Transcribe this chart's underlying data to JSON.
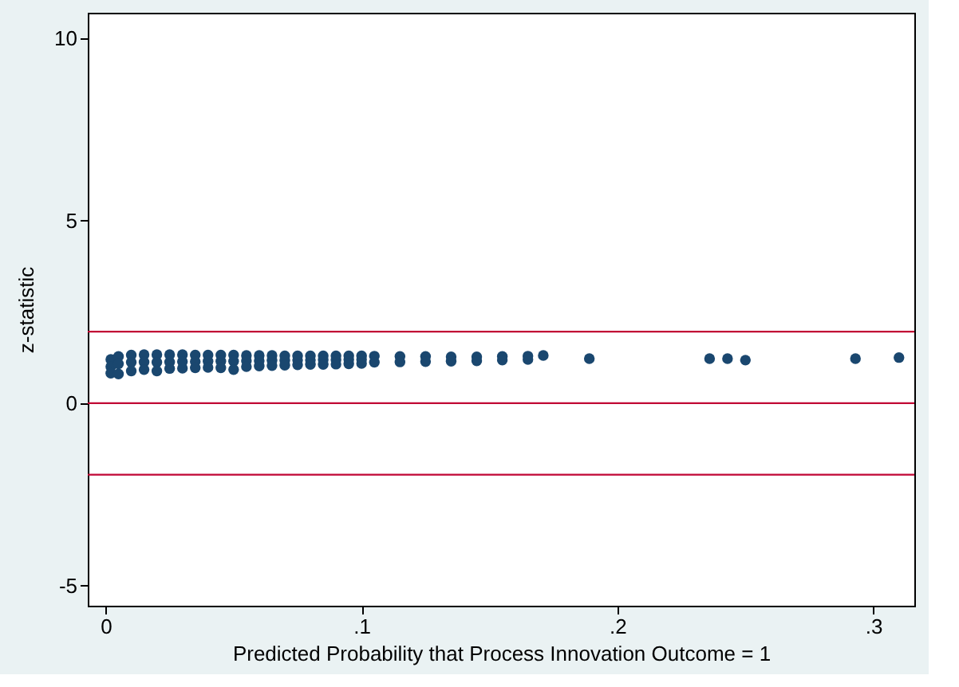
{
  "chart_data": {
    "type": "scatter",
    "xlabel": "Predicted Probability that Process Innovation Outcome = 1",
    "ylabel": "z-statistic",
    "x": [
      0.002,
      0.005,
      0.01,
      0.015,
      0.02,
      0.025,
      0.03,
      0.035,
      0.04,
      0.045,
      0.05,
      0.055,
      0.06,
      0.065,
      0.07,
      0.075,
      0.08,
      0.085,
      0.09,
      0.095,
      0.1,
      0.002,
      0.005,
      0.01,
      0.015,
      0.02,
      0.025,
      0.03,
      0.035,
      0.04,
      0.045,
      0.05,
      0.055,
      0.06,
      0.065,
      0.07,
      0.075,
      0.08,
      0.085,
      0.09,
      0.095,
      0.1,
      0.002,
      0.005,
      0.01,
      0.015,
      0.02,
      0.025,
      0.03,
      0.035,
      0.04,
      0.045,
      0.05,
      0.055,
      0.06,
      0.065,
      0.07,
      0.075,
      0.08,
      0.085,
      0.09,
      0.095,
      0.1,
      0.105,
      0.115,
      0.125,
      0.135,
      0.145,
      0.155,
      0.165,
      0.105,
      0.115,
      0.125,
      0.135,
      0.145,
      0.155,
      0.165,
      0.171,
      0.189,
      0.236,
      0.243,
      0.25,
      0.293,
      0.31
    ],
    "values": [
      1.2,
      1.28,
      1.32,
      1.33,
      1.33,
      1.33,
      1.33,
      1.32,
      1.32,
      1.32,
      1.32,
      1.31,
      1.31,
      1.31,
      1.3,
      1.3,
      1.3,
      1.3,
      1.3,
      1.3,
      1.3,
      1.0,
      1.08,
      1.12,
      1.13,
      1.12,
      1.13,
      1.14,
      1.14,
      1.15,
      1.15,
      1.15,
      1.16,
      1.16,
      1.17,
      1.17,
      1.18,
      1.18,
      1.19,
      1.19,
      1.2,
      1.2,
      0.82,
      0.8,
      0.88,
      0.92,
      0.88,
      0.95,
      0.96,
      0.97,
      0.98,
      0.97,
      0.92,
      1.0,
      1.02,
      1.03,
      1.04,
      1.05,
      1.06,
      1.06,
      1.07,
      1.08,
      1.09,
      1.29,
      1.28,
      1.28,
      1.27,
      1.27,
      1.28,
      1.29,
      1.12,
      1.13,
      1.14,
      1.15,
      1.16,
      1.18,
      1.2,
      1.31,
      1.22,
      1.22,
      1.22,
      1.18,
      1.22,
      1.25
    ],
    "color": "#1a476f",
    "xlim": [
      -0.007,
      0.316
    ],
    "xticks": [
      0,
      {
        "value": 0.1,
        "label": ".1"
      },
      {
        "value": 0.2,
        "label": ".2"
      },
      {
        "value": 0.3,
        "label": ".3"
      }
    ],
    "ylim": [
      -5.55,
      10.7
    ],
    "yticks": [
      -5,
      0,
      5,
      10
    ],
    "ref_lines": [
      {
        "axis": "y",
        "value": 1.96,
        "color": "#c10534"
      },
      {
        "axis": "y",
        "value": 0,
        "color": "#c10534"
      },
      {
        "axis": "y",
        "value": -1.96,
        "color": "#c10534"
      }
    ],
    "grid": false
  }
}
